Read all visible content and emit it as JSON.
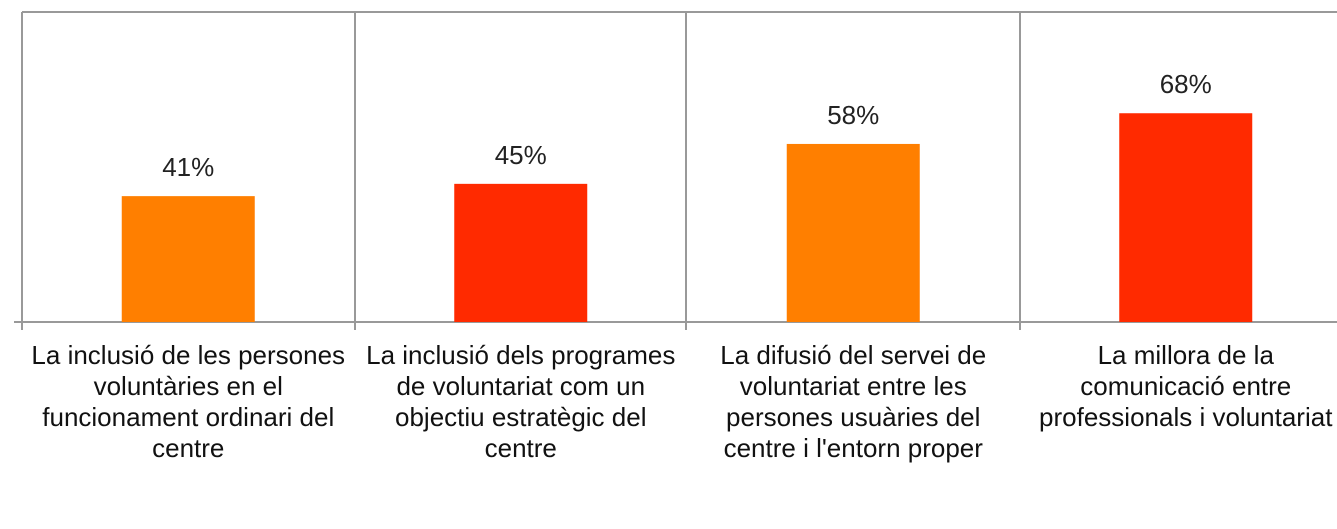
{
  "chart_data": {
    "type": "bar",
    "categories": [
      "La inclusió de les persones voluntàries en el funcionament ordinari del centre",
      "La inclusió dels programes de voluntariat com un objectiu estratègic del centre",
      "La difusió del servei de voluntariat entre les persones usuàries del centre i l'entorn proper",
      "La millora de la comunicació entre professionals i voluntariat"
    ],
    "values": [
      41,
      45,
      58,
      68
    ],
    "value_labels": [
      "41%",
      "45%",
      "58%",
      "68%"
    ],
    "colors": [
      "#ff7f00",
      "#ff2a00",
      "#ff7f00",
      "#ff2a00"
    ],
    "ylim": [
      0,
      100
    ]
  }
}
